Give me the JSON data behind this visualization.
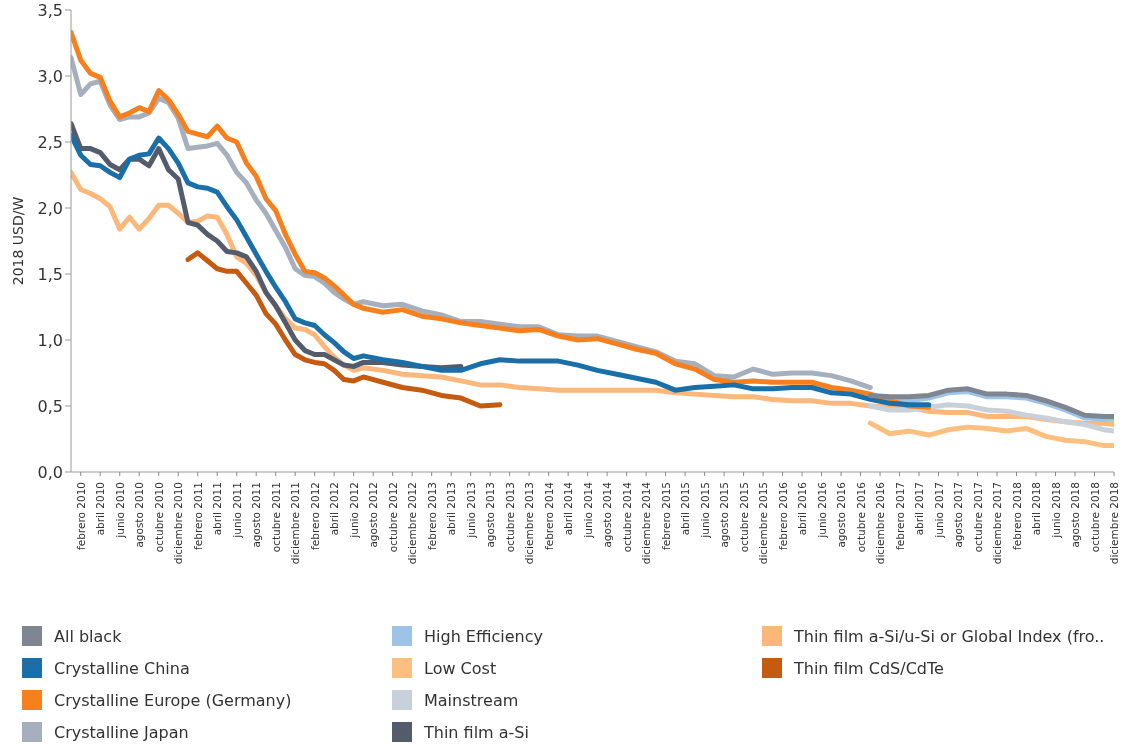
{
  "chart_data": {
    "type": "line",
    "ylabel": "2018 USD/W",
    "x": [
      "2010-01",
      "2010-02",
      "2010-03",
      "2010-04",
      "2010-05",
      "2010-06",
      "2010-07",
      "2010-08",
      "2010-09",
      "2010-10",
      "2010-11",
      "2010-12",
      "2011-01",
      "2011-02",
      "2011-03",
      "2011-04",
      "2011-05",
      "2011-06",
      "2011-07",
      "2011-08",
      "2011-09",
      "2011-10",
      "2011-11",
      "2011-12",
      "2012-01",
      "2012-02",
      "2012-03",
      "2012-04",
      "2012-05",
      "2012-06",
      "2012-07",
      "2012-09",
      "2012-11",
      "2013-01",
      "2013-03",
      "2013-05",
      "2013-07",
      "2013-09",
      "2013-11",
      "2014-01",
      "2014-03",
      "2014-05",
      "2014-07",
      "2014-09",
      "2014-11",
      "2015-01",
      "2015-03",
      "2015-05",
      "2015-07",
      "2015-09",
      "2015-11",
      "2016-01",
      "2016-03",
      "2016-05",
      "2016-07",
      "2016-09",
      "2016-11",
      "2017-01",
      "2017-03",
      "2017-05",
      "2017-07",
      "2017-09",
      "2017-11",
      "2018-01",
      "2018-03",
      "2018-05",
      "2018-07",
      "2018-09",
      "2018-11",
      "2018-12"
    ],
    "series": [
      {
        "name": "All black",
        "color": "#7f8591",
        "values": [
          null,
          null,
          null,
          null,
          null,
          null,
          null,
          null,
          null,
          null,
          null,
          null,
          null,
          null,
          null,
          null,
          null,
          null,
          null,
          null,
          null,
          null,
          null,
          null,
          null,
          null,
          null,
          null,
          null,
          null,
          null,
          null,
          null,
          null,
          null,
          null,
          null,
          null,
          null,
          null,
          null,
          null,
          null,
          null,
          null,
          null,
          null,
          null,
          null,
          null,
          null,
          null,
          null,
          null,
          null,
          null,
          0.58,
          0.57,
          0.57,
          0.58,
          0.62,
          0.63,
          0.59,
          0.59,
          0.58,
          0.54,
          0.49,
          0.43,
          0.42,
          0.42
        ]
      },
      {
        "name": "Crystalline China",
        "color": "#1a6fa8",
        "values": [
          2.55,
          2.4,
          2.33,
          2.32,
          2.27,
          2.23,
          2.37,
          2.4,
          2.41,
          2.53,
          2.45,
          2.34,
          2.19,
          2.16,
          2.15,
          2.12,
          2.01,
          1.91,
          1.78,
          1.65,
          1.52,
          1.4,
          1.29,
          1.16,
          1.13,
          1.11,
          1.04,
          0.98,
          0.91,
          0.86,
          0.88,
          0.85,
          0.83,
          0.8,
          0.77,
          0.77,
          0.82,
          0.85,
          0.84,
          0.84,
          0.84,
          0.81,
          0.77,
          0.74,
          0.71,
          0.68,
          0.62,
          0.64,
          0.65,
          0.66,
          0.63,
          0.63,
          0.64,
          0.64,
          0.6,
          0.59,
          0.55,
          0.52,
          0.51,
          0.51,
          null,
          null,
          null,
          null,
          null,
          null,
          null,
          null,
          null,
          null
        ]
      },
      {
        "name": "Crystalline Europe (Germany)",
        "color": "#f7801e",
        "values": [
          3.33,
          3.12,
          3.02,
          2.99,
          2.81,
          2.69,
          2.72,
          2.76,
          2.73,
          2.89,
          2.82,
          2.71,
          2.58,
          2.56,
          2.54,
          2.62,
          2.53,
          2.5,
          2.34,
          2.24,
          2.07,
          1.98,
          1.8,
          1.65,
          1.52,
          1.51,
          1.47,
          1.41,
          1.34,
          1.27,
          1.24,
          1.21,
          1.23,
          1.18,
          1.16,
          1.13,
          1.11,
          1.09,
          1.07,
          1.08,
          1.03,
          1.0,
          1.01,
          0.97,
          0.93,
          0.9,
          0.82,
          0.78,
          0.7,
          0.68,
          0.69,
          0.68,
          0.68,
          0.68,
          0.64,
          0.62,
          0.59,
          0.54,
          0.5,
          0.49,
          null,
          null,
          null,
          null,
          null,
          null,
          null,
          null,
          null,
          null
        ]
      },
      {
        "name": "Crystalline Japan",
        "color": "#a5afbd",
        "values": [
          3.14,
          2.86,
          2.94,
          2.96,
          2.78,
          2.67,
          2.69,
          2.69,
          2.72,
          2.83,
          2.8,
          2.68,
          2.45,
          2.46,
          2.47,
          2.49,
          2.4,
          2.27,
          2.19,
          2.06,
          1.96,
          1.83,
          1.7,
          1.54,
          1.49,
          1.48,
          1.43,
          1.36,
          1.31,
          1.27,
          1.29,
          1.26,
          1.27,
          1.22,
          1.19,
          1.14,
          1.14,
          1.12,
          1.1,
          1.1,
          1.04,
          1.03,
          1.03,
          0.99,
          0.95,
          0.91,
          0.84,
          0.82,
          0.73,
          0.72,
          0.78,
          0.74,
          0.75,
          0.75,
          0.73,
          0.69,
          0.64,
          null,
          null,
          null,
          null,
          null,
          null,
          null,
          null,
          null,
          null,
          null,
          null,
          null
        ]
      },
      {
        "name": "High Efficiency",
        "color": "#9dc3e6",
        "values": [
          null,
          null,
          null,
          null,
          null,
          null,
          null,
          null,
          null,
          null,
          null,
          null,
          null,
          null,
          null,
          null,
          null,
          null,
          null,
          null,
          null,
          null,
          null,
          null,
          null,
          null,
          null,
          null,
          null,
          null,
          null,
          null,
          null,
          null,
          null,
          null,
          null,
          null,
          null,
          null,
          null,
          null,
          null,
          null,
          null,
          null,
          null,
          null,
          null,
          null,
          null,
          null,
          null,
          null,
          null,
          null,
          0.56,
          0.53,
          0.54,
          0.56,
          0.6,
          0.61,
          0.57,
          0.57,
          0.56,
          0.52,
          0.47,
          0.41,
          0.4,
          0.4
        ]
      },
      {
        "name": "Low Cost",
        "color": "#fdbf80",
        "values": [
          null,
          null,
          null,
          null,
          null,
          null,
          null,
          null,
          null,
          null,
          null,
          null,
          null,
          null,
          null,
          null,
          null,
          null,
          null,
          null,
          null,
          null,
          null,
          null,
          null,
          null,
          null,
          null,
          null,
          null,
          null,
          null,
          null,
          null,
          null,
          null,
          null,
          null,
          null,
          null,
          null,
          null,
          null,
          null,
          null,
          null,
          null,
          null,
          null,
          null,
          null,
          null,
          null,
          null,
          null,
          null,
          0.37,
          0.29,
          0.31,
          0.28,
          0.32,
          0.34,
          0.33,
          0.31,
          0.33,
          0.27,
          0.24,
          0.23,
          0.2,
          0.2
        ]
      },
      {
        "name": "Mainstream",
        "color": "#c8d0da",
        "values": [
          null,
          null,
          null,
          null,
          null,
          null,
          null,
          null,
          null,
          null,
          null,
          null,
          null,
          null,
          null,
          null,
          null,
          null,
          null,
          null,
          null,
          null,
          null,
          null,
          null,
          null,
          null,
          null,
          null,
          null,
          null,
          null,
          null,
          null,
          null,
          null,
          null,
          null,
          null,
          null,
          null,
          null,
          null,
          null,
          null,
          null,
          null,
          null,
          null,
          null,
          null,
          null,
          null,
          null,
          null,
          null,
          0.5,
          0.47,
          0.47,
          0.49,
          0.51,
          0.5,
          0.47,
          0.46,
          0.43,
          0.41,
          0.38,
          0.36,
          0.32,
          0.31
        ]
      },
      {
        "name": "Thin film a-Si",
        "color": "#545c6c",
        "values": [
          2.64,
          2.45,
          2.45,
          2.42,
          2.33,
          2.29,
          2.37,
          2.37,
          2.32,
          2.45,
          2.29,
          2.22,
          1.89,
          1.87,
          1.8,
          1.75,
          1.67,
          1.66,
          1.63,
          1.52,
          1.36,
          1.26,
          1.13,
          1.0,
          0.92,
          0.89,
          0.89,
          0.85,
          0.81,
          0.8,
          0.83,
          0.83,
          0.81,
          0.8,
          0.79,
          0.8,
          null,
          null,
          null,
          null,
          null,
          null,
          null,
          null,
          null,
          null,
          null,
          null,
          null,
          null,
          null,
          null,
          null,
          null,
          null,
          null,
          null,
          null,
          null,
          null,
          null,
          null,
          null,
          null,
          null,
          null,
          null,
          null,
          null,
          null
        ]
      },
      {
        "name": "Thin film a-Si/u-Si or Global Index (fro..",
        "color": "#fcb77a",
        "values": [
          2.27,
          2.14,
          2.11,
          2.07,
          2.01,
          1.84,
          1.93,
          1.84,
          1.92,
          2.02,
          2.02,
          1.96,
          1.89,
          1.9,
          1.94,
          1.93,
          1.8,
          1.63,
          1.58,
          1.49,
          1.36,
          1.26,
          1.16,
          1.09,
          1.08,
          1.04,
          0.95,
          0.87,
          0.81,
          0.77,
          0.79,
          0.77,
          0.74,
          0.73,
          0.72,
          0.69,
          0.66,
          0.66,
          0.64,
          0.63,
          0.62,
          0.62,
          0.62,
          0.62,
          0.62,
          0.62,
          0.6,
          0.59,
          0.58,
          0.57,
          0.57,
          0.55,
          0.54,
          0.54,
          0.52,
          0.52,
          0.5,
          0.49,
          0.49,
          0.46,
          0.45,
          0.45,
          0.42,
          0.42,
          0.42,
          0.4,
          0.38,
          0.37,
          0.37,
          0.36
        ]
      },
      {
        "name": "Thin film CdS/CdTe",
        "color": "#c55a11",
        "values": [
          null,
          null,
          null,
          null,
          null,
          null,
          null,
          null,
          null,
          null,
          null,
          null,
          1.61,
          1.66,
          1.6,
          1.54,
          1.52,
          1.52,
          1.43,
          1.34,
          1.2,
          1.12,
          1.0,
          0.89,
          0.85,
          0.83,
          0.82,
          0.77,
          0.7,
          0.69,
          0.72,
          0.68,
          0.64,
          0.62,
          0.58,
          0.56,
          0.5,
          0.51,
          null,
          null,
          null,
          null,
          null,
          null,
          null,
          null,
          null,
          null,
          null,
          null,
          null,
          null,
          null,
          null,
          null,
          null,
          null,
          null,
          null,
          null,
          null,
          null,
          null,
          null,
          null,
          null,
          null,
          null,
          null,
          null
        ]
      }
    ],
    "xlim": [
      "2010-01",
      "2018-12"
    ],
    "xticks": [
      {
        "value": "2010-02",
        "label": "febrero 2010"
      },
      {
        "value": "2010-04",
        "label": "abril 2010"
      },
      {
        "value": "2010-06",
        "label": "junio 2010"
      },
      {
        "value": "2010-08",
        "label": "agosto 2010"
      },
      {
        "value": "2010-10",
        "label": "octubre 2010"
      },
      {
        "value": "2010-12",
        "label": "diciembre 2010"
      },
      {
        "value": "2011-02",
        "label": "febrero 2011"
      },
      {
        "value": "2011-04",
        "label": "abril 2011"
      },
      {
        "value": "2011-06",
        "label": "junio 2011"
      },
      {
        "value": "2011-08",
        "label": "agosto 2011"
      },
      {
        "value": "2011-10",
        "label": "octubre 2011"
      },
      {
        "value": "2011-12",
        "label": "diciembre 2011"
      },
      {
        "value": "2012-02",
        "label": "febrero 2012"
      },
      {
        "value": "2012-04",
        "label": "abril 2012"
      },
      {
        "value": "2012-06",
        "label": "junio 2012"
      },
      {
        "value": "2012-08",
        "label": "agosto 2012"
      },
      {
        "value": "2012-10",
        "label": "octubre 2012"
      },
      {
        "value": "2012-12",
        "label": "diciembre 2012"
      },
      {
        "value": "2013-02",
        "label": "febrero 2013"
      },
      {
        "value": "2013-04",
        "label": "abril 2013"
      },
      {
        "value": "2013-06",
        "label": "junio 2013"
      },
      {
        "value": "2013-08",
        "label": "agosto 2013"
      },
      {
        "value": "2013-10",
        "label": "octubre 2013"
      },
      {
        "value": "2013-12",
        "label": "diciembre 2013"
      },
      {
        "value": "2014-02",
        "label": "febrero 2014"
      },
      {
        "value": "2014-04",
        "label": "abril 2014"
      },
      {
        "value": "2014-06",
        "label": "junio 2014"
      },
      {
        "value": "2014-08",
        "label": "agosto 2014"
      },
      {
        "value": "2014-10",
        "label": "octubre 2014"
      },
      {
        "value": "2014-12",
        "label": "diciembre 2014"
      },
      {
        "value": "2015-02",
        "label": "febrero 2015"
      },
      {
        "value": "2015-04",
        "label": "abril 2015"
      },
      {
        "value": "2015-06",
        "label": "junio 2015"
      },
      {
        "value": "2015-08",
        "label": "agosto 2015"
      },
      {
        "value": "2015-10",
        "label": "octubre 2015"
      },
      {
        "value": "2015-12",
        "label": "diciembre 2015"
      },
      {
        "value": "2016-02",
        "label": "febrero 2016"
      },
      {
        "value": "2016-04",
        "label": "abril 2016"
      },
      {
        "value": "2016-06",
        "label": "junio 2016"
      },
      {
        "value": "2016-08",
        "label": "agosto 2016"
      },
      {
        "value": "2016-10",
        "label": "octubre 2016"
      },
      {
        "value": "2016-12",
        "label": "diciembre 2016"
      },
      {
        "value": "2017-02",
        "label": "febrero 2017"
      },
      {
        "value": "2017-04",
        "label": "abril 2017"
      },
      {
        "value": "2017-06",
        "label": "junio 2017"
      },
      {
        "value": "2017-08",
        "label": "agosto 2017"
      },
      {
        "value": "2017-10",
        "label": "octubre 2017"
      },
      {
        "value": "2017-12",
        "label": "diciembre 2017"
      },
      {
        "value": "2018-02",
        "label": "febrero 2018"
      },
      {
        "value": "2018-04",
        "label": "abril 2018"
      },
      {
        "value": "2018-06",
        "label": "junio 2018"
      },
      {
        "value": "2018-08",
        "label": "agosto 2018"
      },
      {
        "value": "2018-10",
        "label": "octubre 2018"
      },
      {
        "value": "2018-12",
        "label": "diciembre 2018"
      }
    ],
    "ylim": [
      0,
      3.5
    ],
    "yticks": [
      {
        "value": 0,
        "label": "0,0"
      },
      {
        "value": 0.5,
        "label": "0,5"
      },
      {
        "value": 1,
        "label": "1,0"
      },
      {
        "value": 1.5,
        "label": "1,5"
      },
      {
        "value": 2,
        "label": "2,0"
      },
      {
        "value": 2.5,
        "label": "2,5"
      },
      {
        "value": 3,
        "label": "3,0"
      },
      {
        "value": 3.5,
        "label": "3,5"
      }
    ],
    "grid": false,
    "legend": "bottom",
    "marker": "none",
    "line_style": "solid"
  }
}
